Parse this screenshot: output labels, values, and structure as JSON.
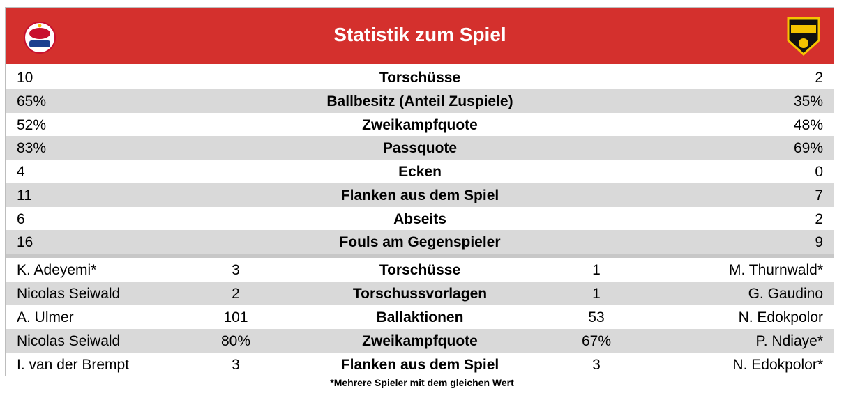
{
  "header": {
    "title": "Statistik zum Spiel"
  },
  "team_stats": {
    "rows": [
      [
        "10",
        "Torschüsse",
        "2"
      ],
      [
        "65%",
        "Ballbesitz (Anteil Zuspiele)",
        "35%"
      ],
      [
        "52%",
        "Zweikampfquote",
        "48%"
      ],
      [
        "83%",
        "Passquote",
        "69%"
      ],
      [
        "4",
        "Ecken",
        "0"
      ],
      [
        "11",
        "Flanken aus dem Spiel",
        "7"
      ],
      [
        "6",
        "Abseits",
        "2"
      ],
      [
        "16",
        "Fouls am Gegenspieler",
        "9"
      ]
    ]
  },
  "player_stats": {
    "rows": [
      [
        "K. Adeyemi*",
        "3",
        "Torschüsse",
        "1",
        "M. Thurnwald*"
      ],
      [
        "Nicolas Seiwald",
        "2",
        "Torschussvorlagen",
        "1",
        "G. Gaudino"
      ],
      [
        "A. Ulmer",
        "101",
        "Ballaktionen",
        "53",
        "N. Edokpolor"
      ],
      [
        "Nicolas Seiwald",
        "80%",
        "Zweikampfquote",
        "67%",
        "P. Ndiaye*"
      ],
      [
        "I. van der Brempt",
        "3",
        "Flanken aus dem Spiel",
        "3",
        "N. Edokpolor*"
      ]
    ]
  },
  "footnote": "*Mehrere Spieler mit dem gleichen Wert"
}
